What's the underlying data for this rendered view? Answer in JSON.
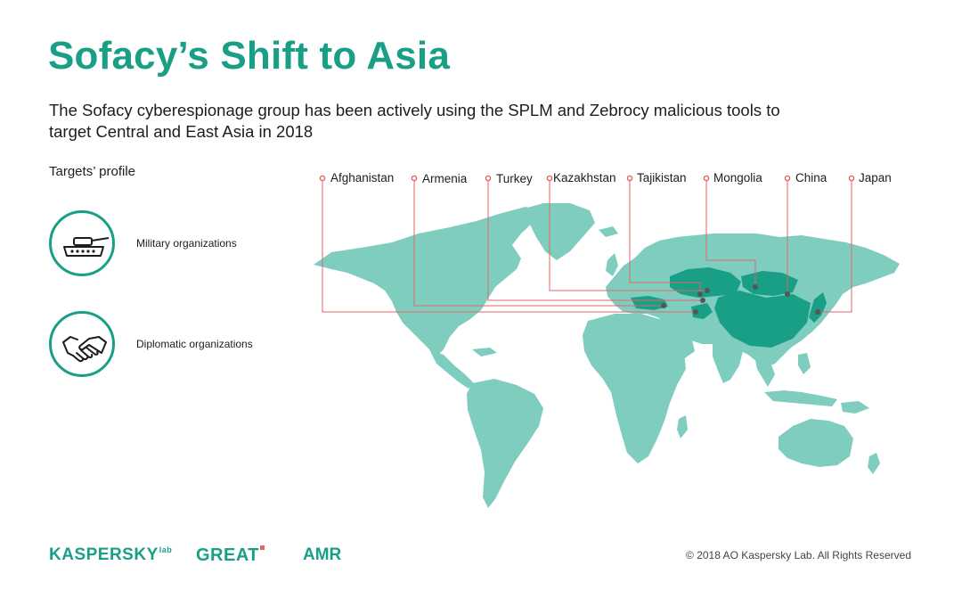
{
  "header": {
    "title": "Sofacy’s Shift to Asia",
    "subtitle": "The Sofacy cyberespionage group has been actively using the SPLM and Zebrocy malicious tools to target Central and East Asia in 2018"
  },
  "profile": {
    "heading": "Targets’ profile",
    "items": [
      {
        "label": "Military organizations",
        "icon": "tank-icon"
      },
      {
        "label": "Diplomatic organizations",
        "icon": "handshake-icon"
      }
    ]
  },
  "map": {
    "land_color": "#7fcdbf",
    "highlight_color": "#1a9f87",
    "line_color": "#e06666",
    "countries": [
      {
        "name": "Afghanistan"
      },
      {
        "name": "Armenia"
      },
      {
        "name": "Turkey"
      },
      {
        "name": "Kazakhstan"
      },
      {
        "name": "Tajikistan"
      },
      {
        "name": "Mongolia"
      },
      {
        "name": "China"
      },
      {
        "name": "Japan"
      }
    ]
  },
  "footer": {
    "logos": [
      "KASPERSKY",
      "GREAT",
      "AMR"
    ],
    "logo_suffix": "lab",
    "copyright": "© 2018 AO Kaspersky Lab. All Rights Reserved"
  }
}
